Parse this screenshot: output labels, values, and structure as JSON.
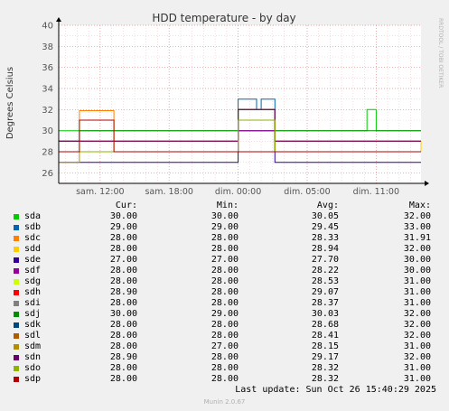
{
  "chart_data": {
    "type": "line",
    "title": "HDD temperature - by day",
    "ylabel": "Degrees Celsius",
    "xlabel": "",
    "ylim": [
      25,
      40
    ],
    "yticks": [
      26,
      28,
      30,
      32,
      34,
      36,
      38,
      40
    ],
    "xtick_labels": [
      "sam. 12:00",
      "sam. 18:00",
      "dim. 00:00",
      "dim. 05:00",
      "dim. 11:00"
    ],
    "x_range_hours": [
      8.4,
      39.9
    ],
    "xtick_hours": [
      12,
      18,
      24,
      30,
      36
    ],
    "grid": true,
    "side_label": "RRDTOOL / TOBI OETIKER",
    "legend_headers": {
      "cur": "Cur:",
      "min": "Min:",
      "avg": "Avg:",
      "max": "Max:"
    },
    "series": [
      {
        "name": "sda",
        "color": "#00cc00",
        "cur": "30.00",
        "min": "30.00",
        "avg": "30.05",
        "max": "32.00",
        "segments": [
          [
            8.4,
            30
          ],
          [
            35.0,
            30
          ],
          [
            35.2,
            32
          ],
          [
            35.8,
            32
          ],
          [
            36.0,
            30
          ],
          [
            39.9,
            30
          ]
        ]
      },
      {
        "name": "sdb",
        "color": "#0066b3",
        "cur": "29.00",
        "min": "29.00",
        "avg": "29.45",
        "max": "33.00",
        "segments": [
          [
            8.4,
            29
          ],
          [
            23.8,
            29
          ],
          [
            24.0,
            33
          ],
          [
            25.4,
            33
          ],
          [
            25.6,
            32
          ],
          [
            26.0,
            33
          ],
          [
            27.0,
            33
          ],
          [
            27.2,
            29
          ],
          [
            39.9,
            29
          ]
        ]
      },
      {
        "name": "sdc",
        "color": "#ff8000",
        "cur": "28.00",
        "min": "28.00",
        "avg": "28.33",
        "max": "31.91",
        "segments": [
          [
            8.4,
            28
          ],
          [
            10.0,
            28
          ],
          [
            10.2,
            31.9
          ],
          [
            13.0,
            31.9
          ],
          [
            13.2,
            28
          ],
          [
            39.9,
            28
          ]
        ]
      },
      {
        "name": "sdd",
        "color": "#ffcc00",
        "cur": "28.00",
        "min": "28.00",
        "avg": "28.94",
        "max": "32.00",
        "segments": [
          [
            8.4,
            29
          ],
          [
            23.8,
            29
          ],
          [
            24.0,
            32
          ],
          [
            27.0,
            32
          ],
          [
            27.2,
            29
          ],
          [
            39.9,
            28
          ]
        ]
      },
      {
        "name": "sde",
        "color": "#330099",
        "cur": "27.00",
        "min": "27.00",
        "avg": "27.70",
        "max": "30.00",
        "segments": [
          [
            8.4,
            27
          ],
          [
            23.8,
            27
          ],
          [
            24.0,
            30
          ],
          [
            27.0,
            30
          ],
          [
            27.2,
            27
          ],
          [
            39.9,
            27
          ]
        ]
      },
      {
        "name": "sdf",
        "color": "#990099",
        "cur": "28.00",
        "min": "28.00",
        "avg": "28.22",
        "max": "30.00",
        "segments": [
          [
            8.4,
            28
          ],
          [
            23.8,
            28
          ],
          [
            24.0,
            30
          ],
          [
            27.0,
            30
          ],
          [
            27.2,
            28
          ],
          [
            39.9,
            28
          ]
        ]
      },
      {
        "name": "sdg",
        "color": "#ccff00",
        "cur": "28.00",
        "min": "28.00",
        "avg": "28.53",
        "max": "31.00",
        "segments": [
          [
            8.4,
            28
          ],
          [
            10.0,
            28
          ],
          [
            10.2,
            31
          ],
          [
            13.0,
            31
          ],
          [
            13.2,
            28
          ],
          [
            39.9,
            28
          ]
        ]
      },
      {
        "name": "sdh",
        "color": "#ff0000",
        "cur": "28.90",
        "min": "28.00",
        "avg": "29.07",
        "max": "31.00",
        "segments": [
          [
            8.4,
            29
          ],
          [
            23.8,
            29
          ],
          [
            24.0,
            31
          ],
          [
            27.0,
            31
          ],
          [
            27.2,
            29
          ],
          [
            39.9,
            29
          ]
        ]
      },
      {
        "name": "sdi",
        "color": "#808080",
        "cur": "28.00",
        "min": "28.00",
        "avg": "28.37",
        "max": "31.00",
        "segments": [
          [
            8.4,
            28
          ],
          [
            23.8,
            28
          ],
          [
            24.0,
            31
          ],
          [
            27.0,
            31
          ],
          [
            27.2,
            28
          ],
          [
            39.9,
            28
          ]
        ]
      },
      {
        "name": "sdj",
        "color": "#008f00",
        "cur": "30.00",
        "min": "29.00",
        "avg": "30.03",
        "max": "32.00",
        "segments": [
          [
            8.4,
            29
          ],
          [
            10.0,
            29
          ],
          [
            10.2,
            30
          ],
          [
            23.8,
            30
          ],
          [
            24.0,
            32
          ],
          [
            27.0,
            32
          ],
          [
            27.2,
            30
          ],
          [
            39.9,
            30
          ]
        ]
      },
      {
        "name": "sdk",
        "color": "#00487d",
        "cur": "28.00",
        "min": "28.00",
        "avg": "28.68",
        "max": "32.00",
        "segments": [
          [
            8.4,
            28
          ],
          [
            23.8,
            28
          ],
          [
            24.0,
            32
          ],
          [
            27.0,
            32
          ],
          [
            27.2,
            28
          ],
          [
            39.9,
            28
          ]
        ]
      },
      {
        "name": "sdl",
        "color": "#b35a00",
        "cur": "28.00",
        "min": "28.00",
        "avg": "28.41",
        "max": "32.00",
        "segments": [
          [
            8.4,
            28
          ],
          [
            23.8,
            28
          ],
          [
            24.0,
            32
          ],
          [
            27.0,
            32
          ],
          [
            27.2,
            28
          ],
          [
            39.9,
            28
          ]
        ]
      },
      {
        "name": "sdm",
        "color": "#b38f00",
        "cur": "28.00",
        "min": "27.00",
        "avg": "28.15",
        "max": "31.00",
        "segments": [
          [
            8.4,
            27
          ],
          [
            10.0,
            27
          ],
          [
            10.2,
            28
          ],
          [
            23.8,
            28
          ],
          [
            24.0,
            31
          ],
          [
            27.0,
            31
          ],
          [
            27.2,
            28
          ],
          [
            39.9,
            28
          ]
        ]
      },
      {
        "name": "sdn",
        "color": "#6b006b",
        "cur": "28.90",
        "min": "28.00",
        "avg": "29.17",
        "max": "32.00",
        "segments": [
          [
            8.4,
            29
          ],
          [
            23.8,
            29
          ],
          [
            24.0,
            32
          ],
          [
            27.0,
            32
          ],
          [
            27.2,
            29
          ],
          [
            39.9,
            29
          ]
        ]
      },
      {
        "name": "sdo",
        "color": "#8fb300",
        "cur": "28.00",
        "min": "28.00",
        "avg": "28.32",
        "max": "31.00",
        "segments": [
          [
            8.4,
            28
          ],
          [
            23.8,
            28
          ],
          [
            24.0,
            31
          ],
          [
            27.0,
            31
          ],
          [
            27.2,
            28
          ],
          [
            39.9,
            28
          ]
        ]
      },
      {
        "name": "sdp",
        "color": "#b30000",
        "cur": "28.00",
        "min": "28.00",
        "avg": "28.32",
        "max": "31.00",
        "segments": [
          [
            8.4,
            28
          ],
          [
            10.0,
            28
          ],
          [
            10.2,
            31
          ],
          [
            13.0,
            31
          ],
          [
            13.2,
            28
          ],
          [
            39.9,
            28
          ]
        ]
      }
    ]
  },
  "footer": {
    "last_update": "Last update: Sun Oct 26 15:40:29 2025",
    "version": "Munin 2.0.67"
  }
}
